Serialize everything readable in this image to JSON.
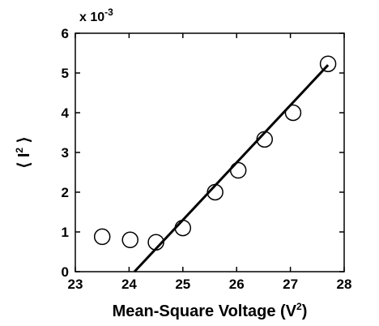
{
  "chart_data": {
    "type": "scatter",
    "xlabel": {
      "text": "Mean-Square Voltage (V",
      "sup": "2",
      "close": ")"
    },
    "ylabel": {
      "open": "⟨ I",
      "sup": "2",
      "close": " ⟩"
    },
    "y_multiplier": {
      "base": "x 10",
      "exp": "-3"
    },
    "xlim": [
      23,
      28
    ],
    "ylim": [
      0,
      6
    ],
    "xticks": [
      23,
      24,
      25,
      26,
      27,
      28
    ],
    "yticks": [
      0,
      1,
      2,
      3,
      4,
      5,
      6
    ],
    "grid": false,
    "series": [
      {
        "marker": "open-circle",
        "x": [
          23.5,
          24.02,
          24.5,
          25.0,
          25.6,
          26.03,
          26.52,
          27.05,
          27.7
        ],
        "y": [
          0.88,
          0.8,
          0.74,
          1.1,
          2.0,
          2.55,
          3.33,
          4.0,
          5.23
        ]
      },
      {
        "line_style": "solid",
        "x": [
          24.1,
          27.7
        ],
        "y": [
          0.0,
          5.2
        ]
      }
    ]
  }
}
